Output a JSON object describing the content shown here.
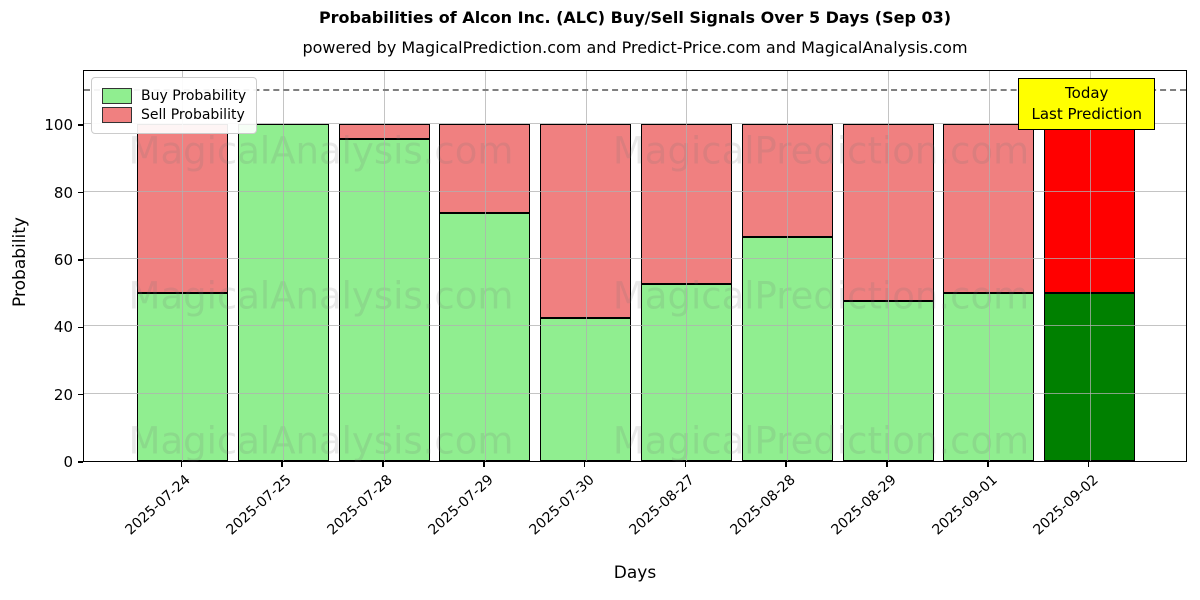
{
  "title": "Probabilities of Alcon Inc. (ALC) Buy/Sell Signals Over 5 Days (Sep 03)",
  "subtitle": "powered by MagicalPrediction.com and Predict-Price.com and MagicalAnalysis.com",
  "legend": {
    "buy_label": "Buy Probability",
    "sell_label": "Sell Probability"
  },
  "annotation": {
    "line1": "Today",
    "line2": "Last Prediction",
    "bg_color": "#ffff00"
  },
  "watermarks": [
    "MagicalAnalysis.com",
    "MagicalPrediction.com"
  ],
  "colors": {
    "buy": "#90ee90",
    "sell": "#f08080",
    "buy_today": "#008000",
    "sell_today": "#ff0000",
    "grid": "#b0b0b0",
    "dashed_line": "#7f7f7f"
  },
  "chart_data": {
    "type": "bar",
    "stacked": true,
    "title": "Probabilities of Alcon Inc. (ALC) Buy/Sell Signals Over 5 Days (Sep 03)",
    "xlabel": "Days",
    "ylabel": "Probability",
    "categories": [
      "2025-07-24",
      "2025-07-25",
      "2025-07-28",
      "2025-07-29",
      "2025-07-30",
      "2025-08-27",
      "2025-08-28",
      "2025-08-29",
      "2025-09-01",
      "2025-09-02"
    ],
    "series": [
      {
        "name": "Buy Probability",
        "values": [
          50,
          100,
          95.5,
          73.5,
          42.5,
          52.5,
          66.5,
          47.5,
          50,
          50
        ]
      },
      {
        "name": "Sell Probability",
        "values": [
          50,
          0,
          4.5,
          26.5,
          57.5,
          47.5,
          33.5,
          52.5,
          50,
          50
        ]
      }
    ],
    "today_index": 9,
    "yticks": [
      0,
      20,
      40,
      60,
      80,
      100
    ],
    "ylim": [
      0,
      116.4
    ],
    "dashed_line_y": 110,
    "grid": true,
    "legend_position": "upper left"
  }
}
